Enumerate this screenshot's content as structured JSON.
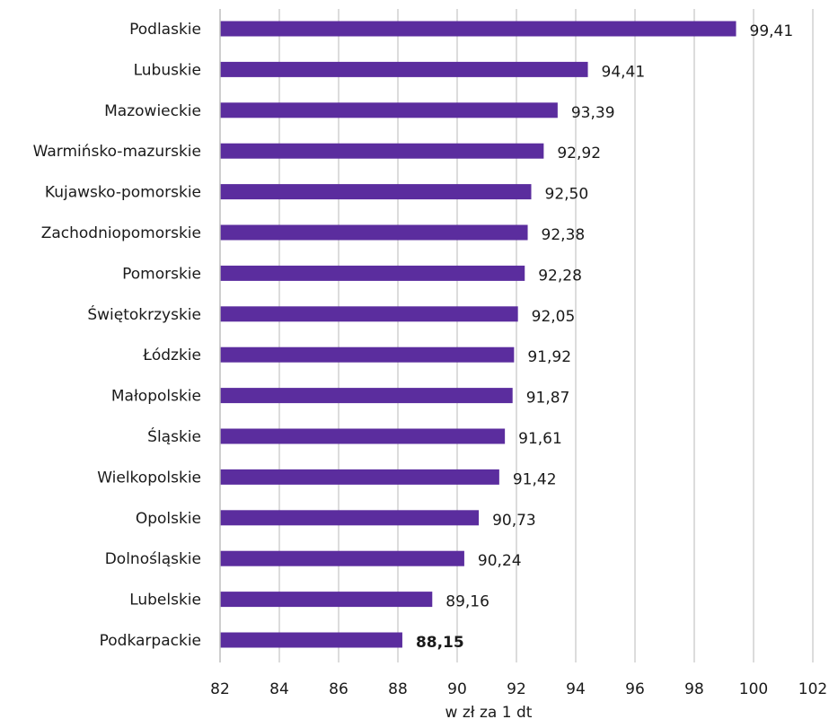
{
  "chart_data": {
    "type": "bar",
    "orientation": "horizontal",
    "categories": [
      "Podlaskie",
      "Lubuskie",
      "Mazowieckie",
      "Warmińsko-mazurskie",
      "Kujawsko-pomorskie",
      "Zachodniopomorskie",
      "Pomorskie",
      "Świętokrzyskie",
      "Łódzkie",
      "Małopolskie",
      "Śląskie",
      "Wielkopolskie",
      "Opolskie",
      "Dolnośląskie",
      "Lubelskie",
      "Podkarpackie"
    ],
    "values": [
      99.41,
      94.41,
      93.39,
      92.92,
      92.5,
      92.38,
      92.28,
      92.05,
      91.92,
      91.87,
      91.61,
      91.42,
      90.73,
      90.24,
      89.16,
      88.15
    ],
    "value_labels": [
      "99,41",
      "94,41",
      "93,39",
      "92,92",
      "92,50",
      "92,38",
      "92,28",
      "92,05",
      "91,92",
      "91,87",
      "91,61",
      "91,42",
      "90,73",
      "90,24",
      "89,16",
      "88,15"
    ],
    "bold_labels": [
      "88,15"
    ],
    "xlabel": "w zł za 1 dt",
    "xlim": [
      82,
      102
    ],
    "xticks": [
      82,
      84,
      86,
      88,
      90,
      92,
      94,
      96,
      98,
      100,
      102
    ],
    "grid": "vertical",
    "bar_color": "#5b2d9e",
    "grid_color": "#d0d0d0"
  }
}
